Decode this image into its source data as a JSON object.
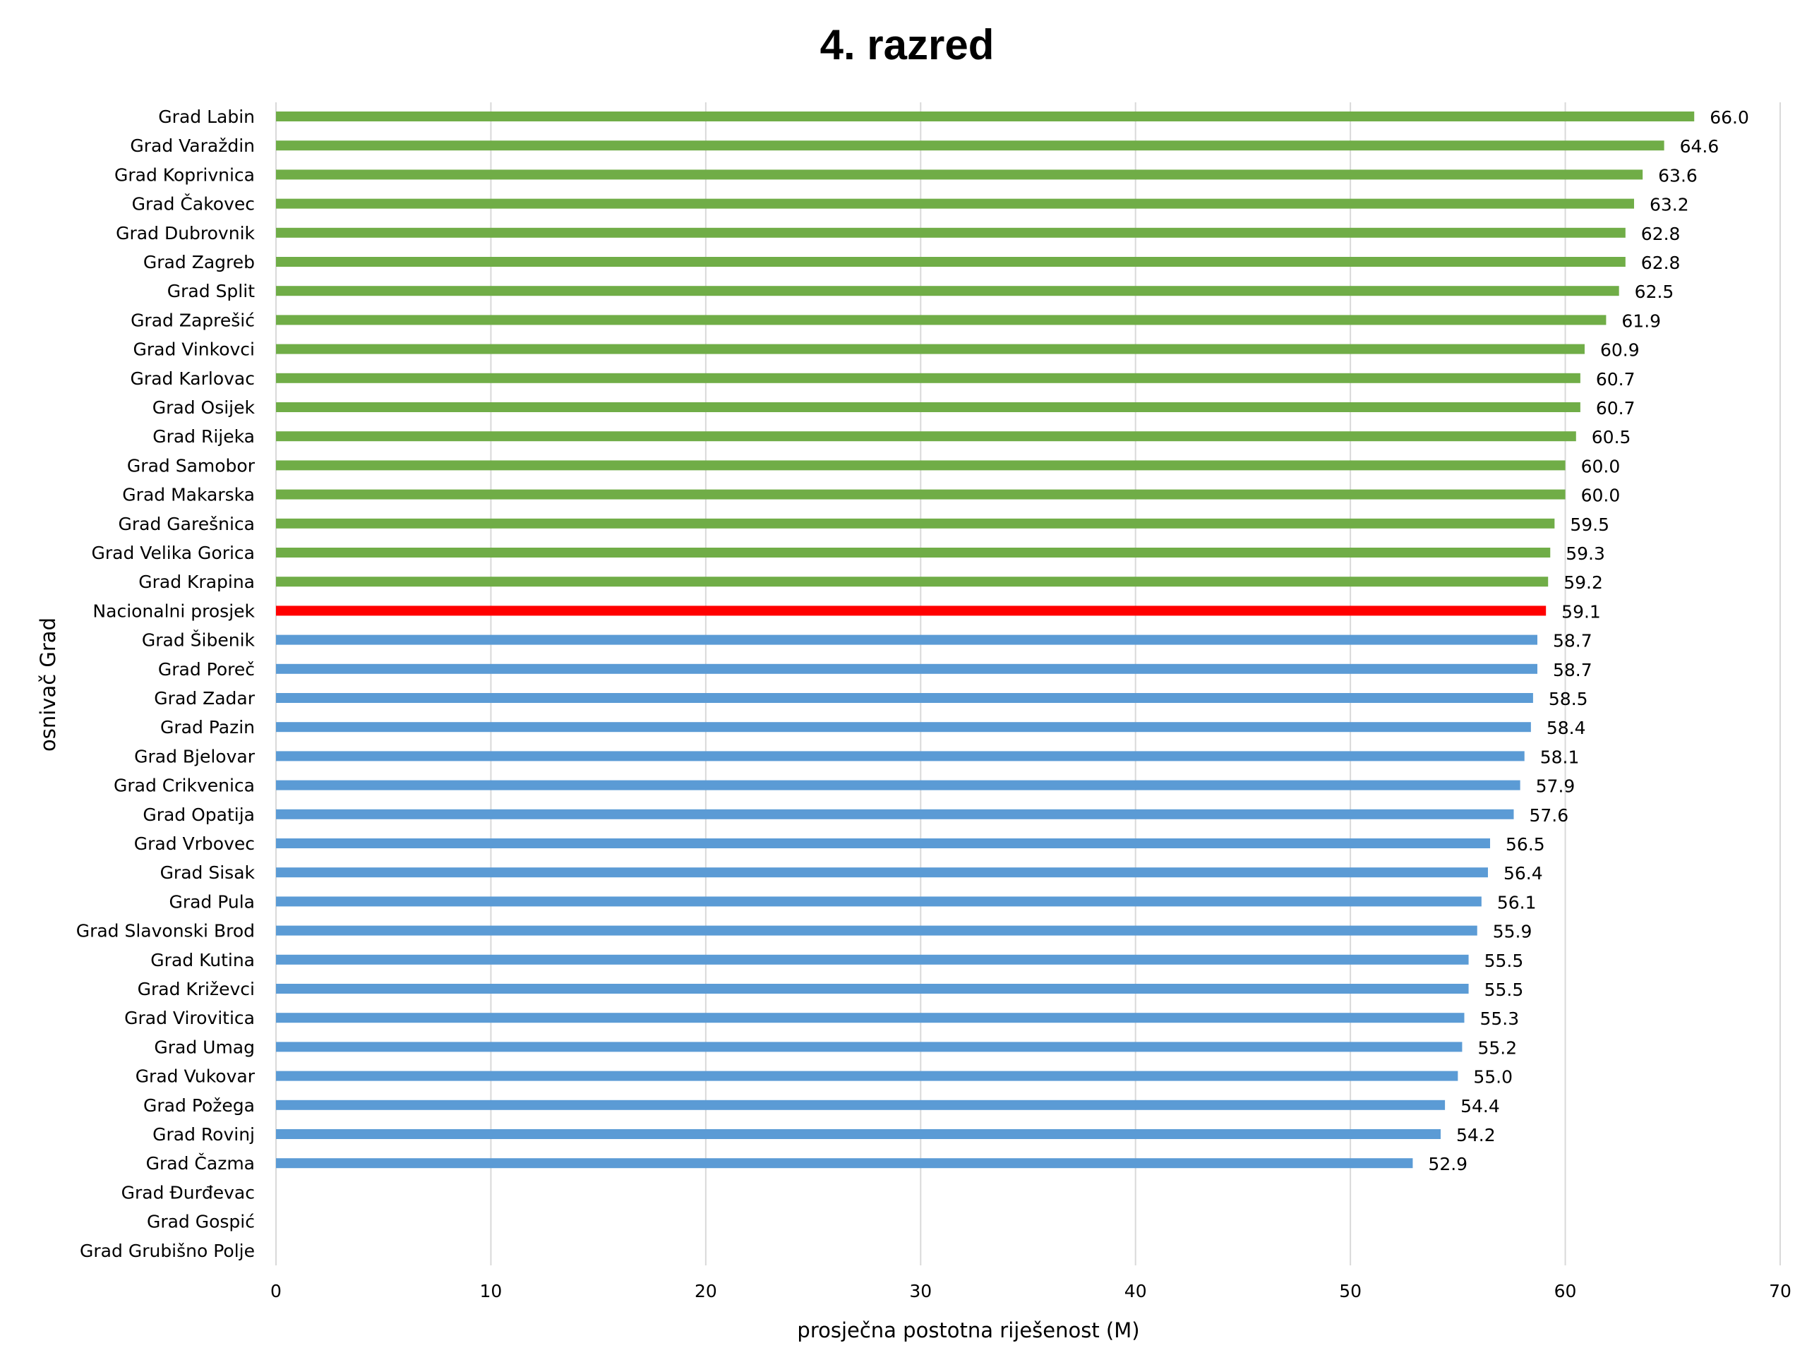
{
  "chart_data": {
    "type": "bar",
    "orientation": "horizontal",
    "title": "4. razred",
    "xlabel": "prosječna postotna riješenost (M)",
    "ylabel": "osnivač Grad",
    "xlim": [
      0,
      70
    ],
    "xticks": [
      "0",
      "10",
      "20",
      "30",
      "40",
      "50",
      "60",
      "70"
    ],
    "grid": true,
    "legend": "none",
    "colors": {
      "above_average": "#70ad47",
      "average": "#ff0000",
      "below_average": "#5b9bd5",
      "label_default": "#000000",
      "label_average": "#ff0000"
    },
    "categories": [
      "Grad Labin",
      "Grad Varaždin",
      "Grad Koprivnica",
      "Grad Čakovec",
      "Grad Dubrovnik",
      "Grad Zagreb",
      "Grad Split",
      "Grad Zaprešić",
      "Grad Vinkovci",
      "Grad Karlovac",
      "Grad Osijek",
      "Grad Rijeka",
      "Grad Samobor",
      "Grad Makarska",
      "Grad Garešnica",
      "Grad Velika Gorica",
      "Grad Krapina",
      "Nacionalni prosjek",
      "Grad Šibenik",
      "Grad Poreč",
      "Grad Zadar",
      "Grad Pazin",
      "Grad Bjelovar",
      "Grad Crikvenica",
      "Grad Opatija",
      "Grad Vrbovec",
      "Grad Sisak",
      "Grad Pula",
      "Grad Slavonski Brod",
      "Grad Kutina",
      "Grad Križevci",
      "Grad Virovitica",
      "Grad Umag",
      "Grad Vukovar",
      "Grad Požega",
      "Grad Rovinj",
      "Grad Čazma",
      "Grad Đurđevac",
      "Grad Gospić",
      "Grad Grubišno Polje"
    ],
    "values": [
      66.0,
      64.6,
      63.6,
      63.2,
      62.8,
      62.8,
      62.5,
      61.9,
      60.9,
      60.7,
      60.7,
      60.5,
      60.0,
      60.0,
      59.5,
      59.3,
      59.2,
      59.1,
      58.7,
      58.7,
      58.5,
      58.4,
      58.1,
      57.9,
      57.6,
      56.5,
      56.4,
      56.1,
      55.9,
      55.5,
      55.5,
      55.3,
      55.2,
      55.0,
      54.4,
      54.2,
      52.9,
      null,
      null,
      null
    ],
    "value_labels": [
      "66.0",
      "64.6",
      "63.6",
      "63.2",
      "62.8",
      "62.8",
      "62.5",
      "61.9",
      "60.9",
      "60.7",
      "60.7",
      "60.5",
      "60.0",
      "60.0",
      "59.5",
      "59.3",
      "59.2",
      "59.1",
      "58.7",
      "58.7",
      "58.5",
      "58.4",
      "58.1",
      "57.9",
      "57.6",
      "56.5",
      "56.4",
      "56.1",
      "55.9",
      "55.5",
      "55.5",
      "55.3",
      "55.2",
      "55.0",
      "54.4",
      "54.2",
      "52.9",
      "",
      "",
      ""
    ],
    "highlight_category": "Nacionalni prosjek"
  }
}
